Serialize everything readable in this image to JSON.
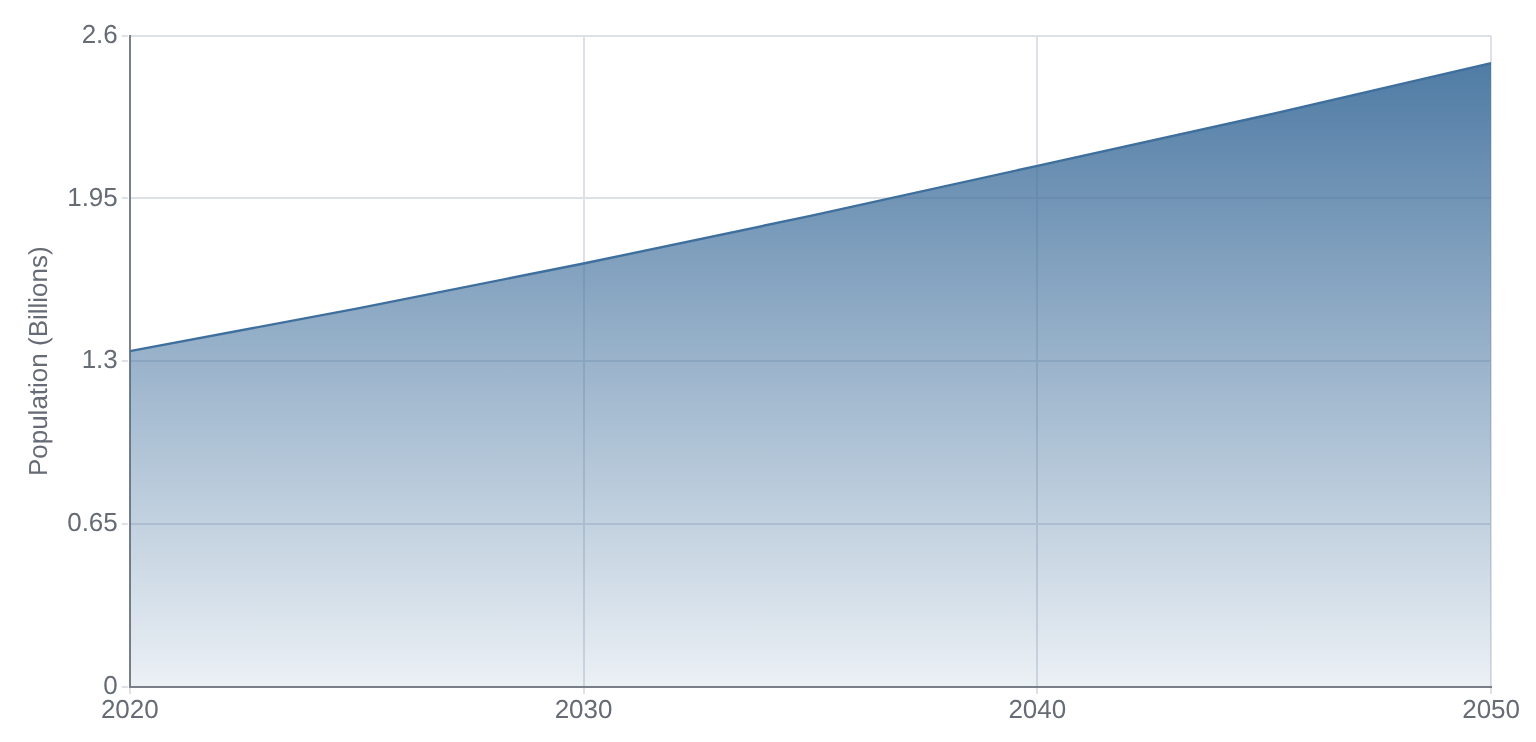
{
  "chart_data": {
    "type": "area",
    "ylabel": "Population (Billions)",
    "x": [
      2020,
      2025,
      2030,
      2035,
      2040,
      2045,
      2050
    ],
    "series": [
      {
        "color": "#3f6f9c",
        "values": [
          1.34,
          1.51,
          1.69,
          1.88,
          2.08,
          2.28,
          2.49
        ]
      }
    ],
    "xlim": [
      2020,
      2050
    ],
    "xticks": [
      2020,
      2030,
      2040,
      2050
    ],
    "ylim": [
      0,
      2.6
    ],
    "yticks": [
      0,
      0.65,
      1.3,
      1.95,
      2.6
    ],
    "grid": true,
    "legend": false,
    "marker": "none",
    "line_style": "solid"
  }
}
